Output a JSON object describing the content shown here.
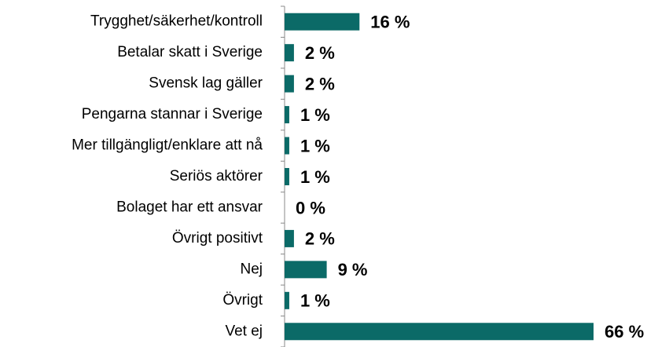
{
  "chart_data": {
    "type": "bar",
    "orientation": "horizontal",
    "categories": [
      "Trygghet/säkerhet/kontroll",
      "Betalar skatt i Sverige",
      "Svensk lag gäller",
      "Pengarna stannar i Sverige",
      "Mer tillgängligt/enklare att nå",
      "Seriös aktörer",
      "Bolaget har ett ansvar",
      "Övrigt positivt",
      "Nej",
      "Övrigt",
      "Vet ej"
    ],
    "values": [
      16,
      2,
      2,
      1,
      1,
      1,
      0,
      2,
      9,
      1,
      66
    ],
    "value_labels": [
      "16 %",
      "2 %",
      "2 %",
      "1 %",
      "1 %",
      "1 %",
      "0 %",
      "2 %",
      "9 %",
      "1 %",
      "66 %"
    ],
    "color": "#0b6a67"
  }
}
